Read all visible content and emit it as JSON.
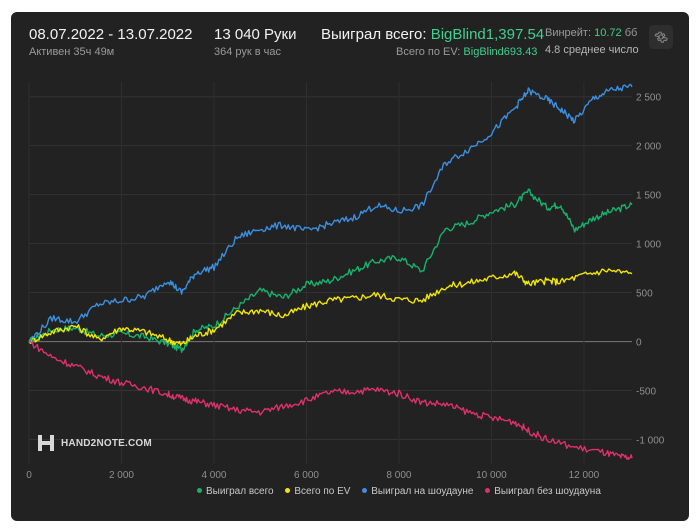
{
  "header": {
    "date_range": "08.07.2022 - 13.07.2022",
    "active_time": "Активен 35ч 49м",
    "hands_count": "13 040 Руки",
    "hands_per_hour": "364 рук в час",
    "won_total_label": "Выиграл всего:",
    "won_total_value": "BigBlind1,397.54",
    "ev_total_label": "Всего по EV:",
    "ev_total_value": "BigBlind693.43",
    "winrate_label": "Винрейт:",
    "winrate_value": "10.72",
    "winrate_unit": "бб",
    "avg_text": "4.8 среднее число"
  },
  "settings_icon": "gear-icon",
  "logo_text": "HAND2NOTE.COM",
  "colors": {
    "won_total": "#17b26a",
    "ev_total": "#f2e600",
    "showdown": "#3b8fe0",
    "non_showdown": "#e0306a",
    "panel_bg": "#222222",
    "accent_green": "#3fcf8e"
  },
  "chart_data": {
    "type": "line",
    "x_ticks": [
      "0",
      "2 000",
      "4 000",
      "6 000",
      "8 000",
      "10 000",
      "12 000"
    ],
    "y_ticks": [
      "2 500",
      "2 000",
      "1 500",
      "1 000",
      "500",
      "0",
      "-500",
      "-1 000"
    ],
    "xlim": [
      0,
      13040
    ],
    "ylim": [
      -1250,
      2650
    ],
    "grid": true,
    "legend_position": "bottom",
    "series": [
      {
        "name": "Выиграл всего",
        "color": "#17b26a",
        "points": [
          [
            0,
            0
          ],
          [
            500,
            120
          ],
          [
            1000,
            140
          ],
          [
            1500,
            60
          ],
          [
            2000,
            80
          ],
          [
            2500,
            50
          ],
          [
            3000,
            -20
          ],
          [
            3300,
            -80
          ],
          [
            3600,
            120
          ],
          [
            4000,
            160
          ],
          [
            4500,
            350
          ],
          [
            5000,
            520
          ],
          [
            5500,
            450
          ],
          [
            6000,
            580
          ],
          [
            6500,
            620
          ],
          [
            7000,
            720
          ],
          [
            7500,
            820
          ],
          [
            8000,
            860
          ],
          [
            8500,
            720
          ],
          [
            9000,
            1150
          ],
          [
            9500,
            1210
          ],
          [
            10000,
            1330
          ],
          [
            10500,
            1400
          ],
          [
            10800,
            1530
          ],
          [
            11200,
            1370
          ],
          [
            11500,
            1400
          ],
          [
            11800,
            1140
          ],
          [
            12200,
            1260
          ],
          [
            12600,
            1330
          ],
          [
            13040,
            1397
          ]
        ]
      },
      {
        "name": "Всего по EV",
        "color": "#f2e600",
        "points": [
          [
            0,
            0
          ],
          [
            500,
            100
          ],
          [
            1000,
            160
          ],
          [
            1500,
            20
          ],
          [
            2000,
            140
          ],
          [
            2500,
            100
          ],
          [
            3000,
            20
          ],
          [
            3300,
            -30
          ],
          [
            3600,
            60
          ],
          [
            4000,
            120
          ],
          [
            4500,
            290
          ],
          [
            5000,
            320
          ],
          [
            5500,
            260
          ],
          [
            6000,
            360
          ],
          [
            6500,
            420
          ],
          [
            7000,
            440
          ],
          [
            7500,
            480
          ],
          [
            8000,
            430
          ],
          [
            8500,
            420
          ],
          [
            9000,
            560
          ],
          [
            9500,
            600
          ],
          [
            10000,
            650
          ],
          [
            10500,
            700
          ],
          [
            10800,
            590
          ],
          [
            11200,
            620
          ],
          [
            11500,
            610
          ],
          [
            12000,
            680
          ],
          [
            12500,
            730
          ],
          [
            13040,
            693
          ]
        ]
      },
      {
        "name": "Выиграл на шоудауне",
        "color": "#3b8fe0",
        "points": [
          [
            0,
            0
          ],
          [
            500,
            240
          ],
          [
            1000,
            200
          ],
          [
            1500,
            380
          ],
          [
            2000,
            420
          ],
          [
            2500,
            460
          ],
          [
            3000,
            630
          ],
          [
            3300,
            500
          ],
          [
            3600,
            700
          ],
          [
            4000,
            760
          ],
          [
            4500,
            1060
          ],
          [
            5000,
            1150
          ],
          [
            5500,
            1190
          ],
          [
            6000,
            1130
          ],
          [
            6500,
            1200
          ],
          [
            7000,
            1260
          ],
          [
            7500,
            1390
          ],
          [
            8000,
            1330
          ],
          [
            8500,
            1390
          ],
          [
            9000,
            1820
          ],
          [
            9500,
            1960
          ],
          [
            10000,
            2130
          ],
          [
            10500,
            2380
          ],
          [
            10800,
            2560
          ],
          [
            11200,
            2470
          ],
          [
            11500,
            2370
          ],
          [
            11800,
            2250
          ],
          [
            12200,
            2480
          ],
          [
            12600,
            2570
          ],
          [
            13040,
            2600
          ]
        ]
      },
      {
        "name": "Выиграл без шоудауна",
        "color": "#e0306a",
        "points": [
          [
            0,
            0
          ],
          [
            500,
            -160
          ],
          [
            1000,
            -250
          ],
          [
            1500,
            -350
          ],
          [
            2000,
            -420
          ],
          [
            2500,
            -470
          ],
          [
            3000,
            -540
          ],
          [
            3300,
            -580
          ],
          [
            3600,
            -610
          ],
          [
            4000,
            -650
          ],
          [
            4500,
            -700
          ],
          [
            5000,
            -720
          ],
          [
            5500,
            -660
          ],
          [
            6000,
            -600
          ],
          [
            6500,
            -520
          ],
          [
            7000,
            -510
          ],
          [
            7500,
            -490
          ],
          [
            8000,
            -530
          ],
          [
            8500,
            -620
          ],
          [
            9000,
            -640
          ],
          [
            9500,
            -720
          ],
          [
            10000,
            -780
          ],
          [
            10500,
            -820
          ],
          [
            10800,
            -910
          ],
          [
            11200,
            -1000
          ],
          [
            11800,
            -1080
          ],
          [
            12400,
            -1130
          ],
          [
            12800,
            -1180
          ],
          [
            13040,
            -1190
          ]
        ]
      }
    ]
  }
}
